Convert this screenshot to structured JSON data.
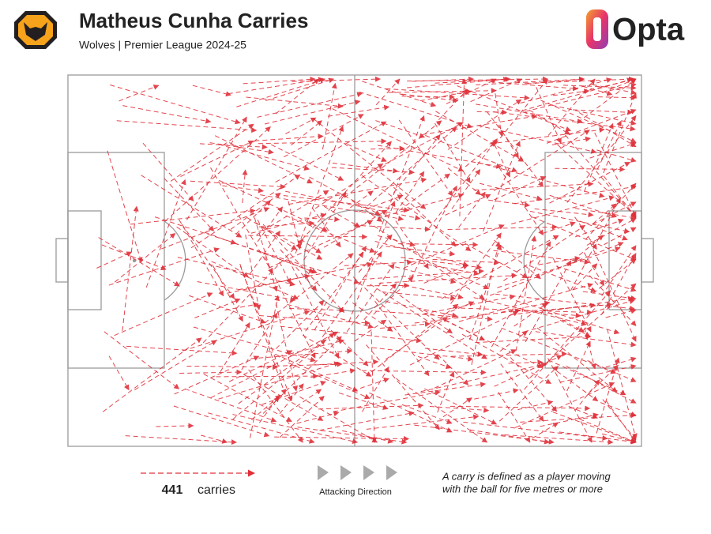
{
  "header": {
    "title": "Matheus Cunha Carries",
    "subtitle": "Wolves | Premier League 2024-25",
    "brand": "Opta"
  },
  "legend": {
    "count": 441,
    "count_label": "carries",
    "direction_label": "Attacking Direction",
    "note": [
      "A carry is defined as a player moving",
      "with the ball for five metres or more"
    ]
  }
}
